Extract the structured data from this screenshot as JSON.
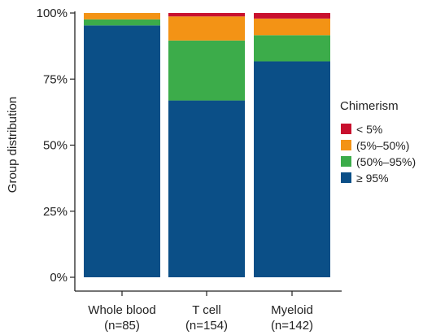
{
  "chart_data": {
    "type": "bar",
    "stacked": true,
    "title": "",
    "xlabel": "",
    "ylabel": "Group distribution",
    "ylim": [
      0,
      100
    ],
    "y_ticks": [
      "0%",
      "25%",
      "50%",
      "75%",
      "100%"
    ],
    "y_tick_values": [
      0,
      25,
      50,
      75,
      100
    ],
    "categories": [
      "Whole blood",
      "T cell",
      "Myeloid"
    ],
    "category_sublabels": [
      "(n=85)",
      "(n=154)",
      "(n=142)"
    ],
    "legend": {
      "title": "Chimerism",
      "placement": "right"
    },
    "series": [
      {
        "name": "≥ 95%",
        "color": "#0b4f87",
        "values": [
          95.3,
          66.9,
          81.7
        ]
      },
      {
        "name": "(50%–95%)",
        "color": "#3cac4a",
        "values": [
          2.3,
          22.7,
          9.9
        ]
      },
      {
        "name": "(5%–50%)",
        "color": "#f39315",
        "values": [
          2.4,
          9.1,
          6.3
        ]
      },
      {
        "name": "< 5%",
        "color": "#c8102e",
        "values": [
          0.0,
          1.3,
          2.1
        ]
      }
    ],
    "legend_order": [
      "< 5%",
      "(5%–50%)",
      "(50%–95%)",
      "≥ 95%"
    ],
    "grid": false
  }
}
